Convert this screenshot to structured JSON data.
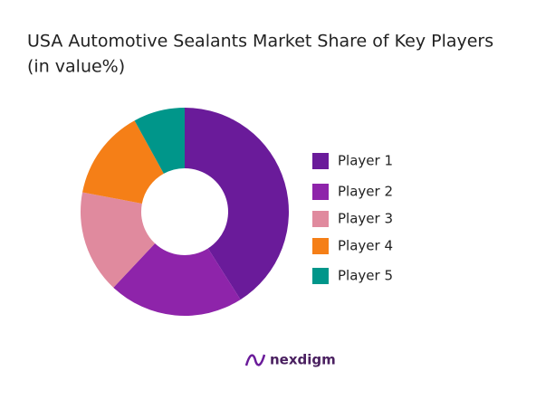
{
  "chart_data": {
    "type": "donut",
    "title": "USA Automotive Sealants Market Share of Key Players",
    "subtitle": "(in value%)",
    "categories": [
      "Player 1",
      "Player 2",
      "Player 3",
      "Player 4",
      "Player 5"
    ],
    "values": [
      41,
      21,
      16,
      14,
      8
    ],
    "colors": [
      "#6a1b9a",
      "#8e24aa",
      "#e08a9e",
      "#f57f17",
      "#00968a"
    ],
    "brand": "nexdigm"
  }
}
